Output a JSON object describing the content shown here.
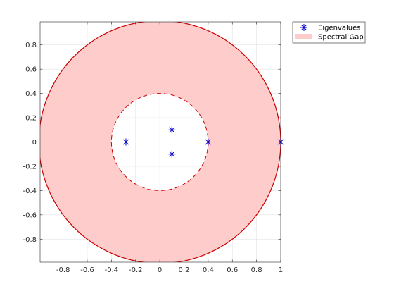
{
  "chart_data": {
    "type": "scatter",
    "title": "",
    "xlabel": "",
    "ylabel": "",
    "xlim": [
      -0.9897,
      1.0
    ],
    "ylim": [
      -0.99,
      0.99
    ],
    "xticks": [
      -0.8,
      -0.6,
      -0.4,
      -0.2,
      0,
      0.2,
      0.4,
      0.6,
      0.8,
      1
    ],
    "yticks": [
      -0.8,
      -0.6,
      -0.4,
      -0.2,
      0,
      0.2,
      0.4,
      0.6,
      0.8
    ],
    "xtick_labels": [
      "-0.8",
      "-0.6",
      "-0.4",
      "-0.2",
      "0",
      "0.2",
      "0.4",
      "0.6",
      "0.8",
      "1"
    ],
    "ytick_labels": [
      "-0.8",
      "-0.6",
      "-0.4",
      "-0.2",
      "0",
      "0.2",
      "0.4",
      "0.6",
      "0.8"
    ],
    "grid": true,
    "legend_position": "outside-top-right",
    "series": [
      {
        "name": "Eigenvalues",
        "kind": "markers",
        "marker": "asterisk",
        "color": "#0000cc",
        "points": [
          {
            "x": 1.0,
            "y": 0.0
          },
          {
            "x": 0.4,
            "y": 0.0
          },
          {
            "x": 0.1,
            "y": 0.1
          },
          {
            "x": 0.1,
            "y": -0.1
          },
          {
            "x": -0.28,
            "y": 0.0
          }
        ]
      },
      {
        "name": "Spectral Gap",
        "kind": "annulus",
        "fill_color": "#ffcccc",
        "outer_radius": 1.0,
        "inner_radius": 0.4,
        "outer_edge_color": "#cc0000",
        "inner_edge_color": "#cc0000",
        "inner_edge_style": "dashed"
      }
    ]
  }
}
